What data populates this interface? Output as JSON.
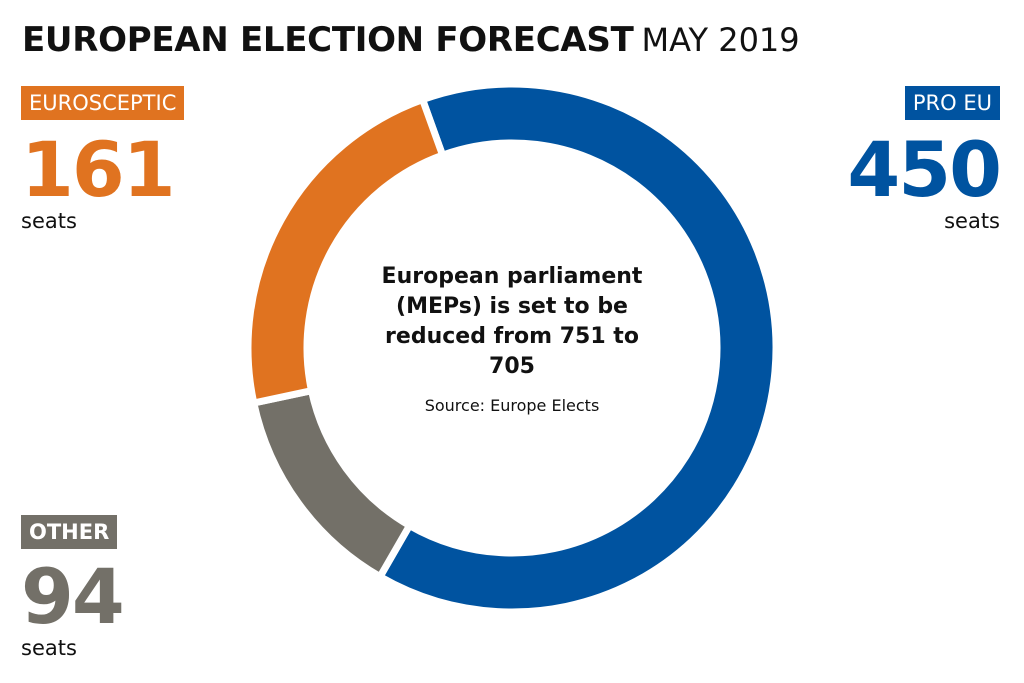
{
  "title": {
    "main": "EUROPEAN ELECTION FORECAST",
    "sub": "MAY 2019"
  },
  "colors": {
    "eurosceptic": "#e07320",
    "pro_eu": "#0053a0",
    "other": "#737068"
  },
  "blocs": {
    "eurosceptic": {
      "label": "EUROSCEPTIC",
      "value": "161",
      "unit": "seats"
    },
    "pro_eu": {
      "label": "PRO EU",
      "value": "450",
      "unit": "seats"
    },
    "other": {
      "label": "OTHER",
      "value": "94",
      "unit": "seats"
    }
  },
  "center": {
    "note": "European parliament (MEPs) is set to be reduced from 751 to 705",
    "source": "Source: Europe Elects"
  },
  "chart_data": {
    "type": "pie",
    "style": "donut",
    "title": "EUROPEAN ELECTION FORECAST",
    "subtitle": "MAY 2019",
    "categories": [
      "PRO EU",
      "OTHER",
      "EUROSCEPTIC"
    ],
    "values": [
      450,
      94,
      161
    ],
    "total": 705,
    "colors": [
      "#0053a0",
      "#737068",
      "#e07320"
    ],
    "unit": "seats",
    "legend": "none",
    "annotation": "European parliament (MEPs) is set to be reduced from 751 to 705",
    "source": "Source: Europe Elects"
  }
}
